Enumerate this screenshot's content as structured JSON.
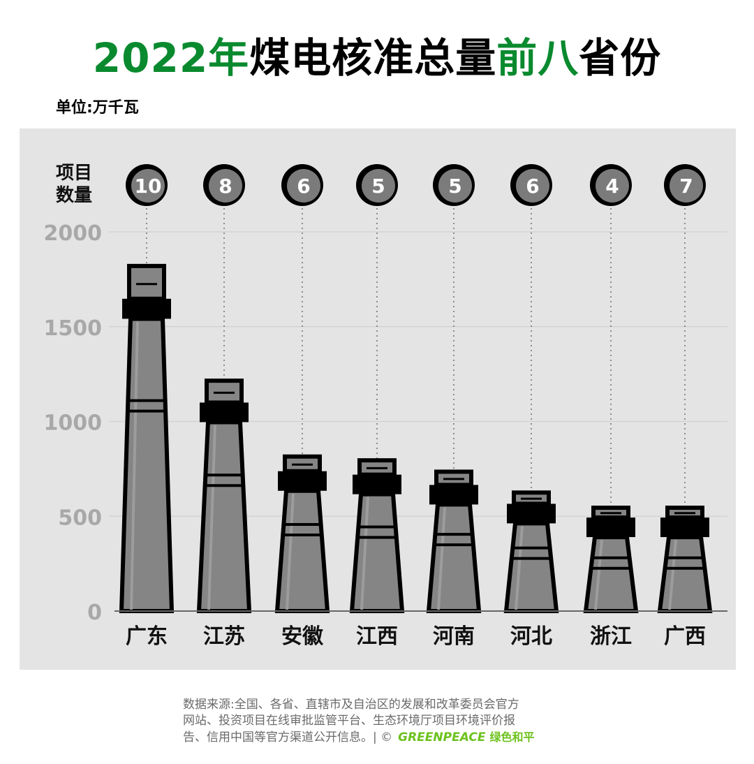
{
  "header": {
    "title_parts": [
      "2022年",
      "煤电核准总量",
      "前八",
      "省份"
    ],
    "unit": "单位:万千瓦"
  },
  "footer": {
    "lines": [
      "数据来源:全国、各省、直辖市及自治区的发展和改革委员会官方",
      "网站、投资项目在线审批监管平台、生态环境厅项目环境评价报",
      "告、信用中国等官方渠道公开信息。| ©"
    ],
    "logo_en": "GREENPEACE",
    "logo_cn": "绿色和平"
  },
  "colors": {
    "accent_green": "#0a8a2e",
    "chimney_fill": "#858585",
    "panel_bg": "#e4e4e4",
    "logo_green": "#6cc21d"
  },
  "chart_data": {
    "type": "bar",
    "title": "2022年煤电核准总量前八省份",
    "ylabel": "单位:万千瓦",
    "ylim": [
      0,
      2000
    ],
    "yticks": [
      0,
      500,
      1000,
      1500,
      2000
    ],
    "grid": true,
    "categories": [
      "广东",
      "江苏",
      "安徽",
      "江西",
      "河南",
      "河北",
      "浙江",
      "广西"
    ],
    "values": [
      1820,
      1215,
      815,
      795,
      735,
      625,
      545,
      545
    ],
    "project_count_label": [
      "项目",
      "数量"
    ],
    "project_counts": [
      10,
      8,
      6,
      5,
      5,
      6,
      4,
      7
    ]
  }
}
